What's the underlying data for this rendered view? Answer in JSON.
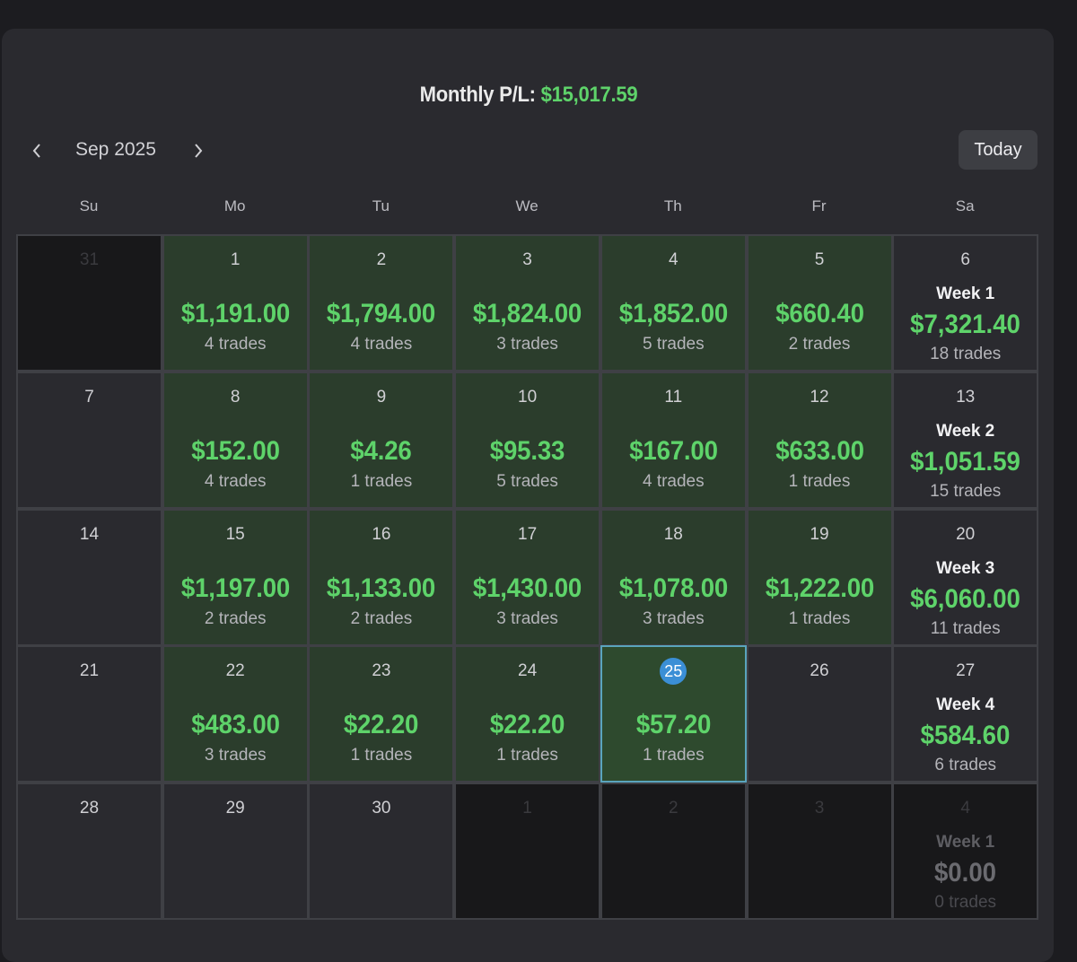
{
  "header": {
    "monthly_label": "Monthly P/L:",
    "monthly_value": "$15,017.59"
  },
  "nav": {
    "month": "Sep 2025",
    "today_label": "Today"
  },
  "weekdays": [
    "Su",
    "Mo",
    "Tu",
    "We",
    "Th",
    "Fr",
    "Sa"
  ],
  "colors": {
    "profit_green": "#5ed36a",
    "green_cell": "#2b3d2c",
    "today_ring": "#5aa4bd",
    "today_badge": "#3b8fd6"
  },
  "weeks": [
    {
      "days": [
        {
          "day": "31",
          "outside": true
        },
        {
          "day": "1",
          "pnl": "$1,191.00",
          "trades": "4 trades"
        },
        {
          "day": "2",
          "pnl": "$1,794.00",
          "trades": "4 trades"
        },
        {
          "day": "3",
          "pnl": "$1,824.00",
          "trades": "3 trades"
        },
        {
          "day": "4",
          "pnl": "$1,852.00",
          "trades": "5 trades"
        },
        {
          "day": "5",
          "pnl": "$660.40",
          "trades": "2 trades"
        }
      ],
      "summary": {
        "day": "6",
        "label": "Week 1",
        "pnl": "$7,321.40",
        "trades": "18 trades"
      }
    },
    {
      "days": [
        {
          "day": "7"
        },
        {
          "day": "8",
          "pnl": "$152.00",
          "trades": "4 trades"
        },
        {
          "day": "9",
          "pnl": "$4.26",
          "trades": "1 trades"
        },
        {
          "day": "10",
          "pnl": "$95.33",
          "trades": "5 trades"
        },
        {
          "day": "11",
          "pnl": "$167.00",
          "trades": "4 trades"
        },
        {
          "day": "12",
          "pnl": "$633.00",
          "trades": "1 trades"
        }
      ],
      "summary": {
        "day": "13",
        "label": "Week 2",
        "pnl": "$1,051.59",
        "trades": "15 trades"
      }
    },
    {
      "days": [
        {
          "day": "14"
        },
        {
          "day": "15",
          "pnl": "$1,197.00",
          "trades": "2 trades"
        },
        {
          "day": "16",
          "pnl": "$1,133.00",
          "trades": "2 trades"
        },
        {
          "day": "17",
          "pnl": "$1,430.00",
          "trades": "3 trades"
        },
        {
          "day": "18",
          "pnl": "$1,078.00",
          "trades": "3 trades"
        },
        {
          "day": "19",
          "pnl": "$1,222.00",
          "trades": "1 trades"
        }
      ],
      "summary": {
        "day": "20",
        "label": "Week 3",
        "pnl": "$6,060.00",
        "trades": "11 trades"
      }
    },
    {
      "days": [
        {
          "day": "21"
        },
        {
          "day": "22",
          "pnl": "$483.00",
          "trades": "3 trades"
        },
        {
          "day": "23",
          "pnl": "$22.20",
          "trades": "1 trades"
        },
        {
          "day": "24",
          "pnl": "$22.20",
          "trades": "1 trades"
        },
        {
          "day": "25",
          "pnl": "$57.20",
          "trades": "1 trades",
          "today": true
        },
        {
          "day": "26"
        }
      ],
      "summary": {
        "day": "27",
        "label": "Week 4",
        "pnl": "$584.60",
        "trades": "6 trades"
      }
    },
    {
      "days": [
        {
          "day": "28"
        },
        {
          "day": "29"
        },
        {
          "day": "30"
        },
        {
          "day": "1",
          "outside": true
        },
        {
          "day": "2",
          "outside": true
        },
        {
          "day": "3",
          "outside": true
        }
      ],
      "summary": {
        "day": "4",
        "label": "Week 1",
        "pnl": "$0.00",
        "trades": "0 trades",
        "outside": true
      }
    }
  ]
}
